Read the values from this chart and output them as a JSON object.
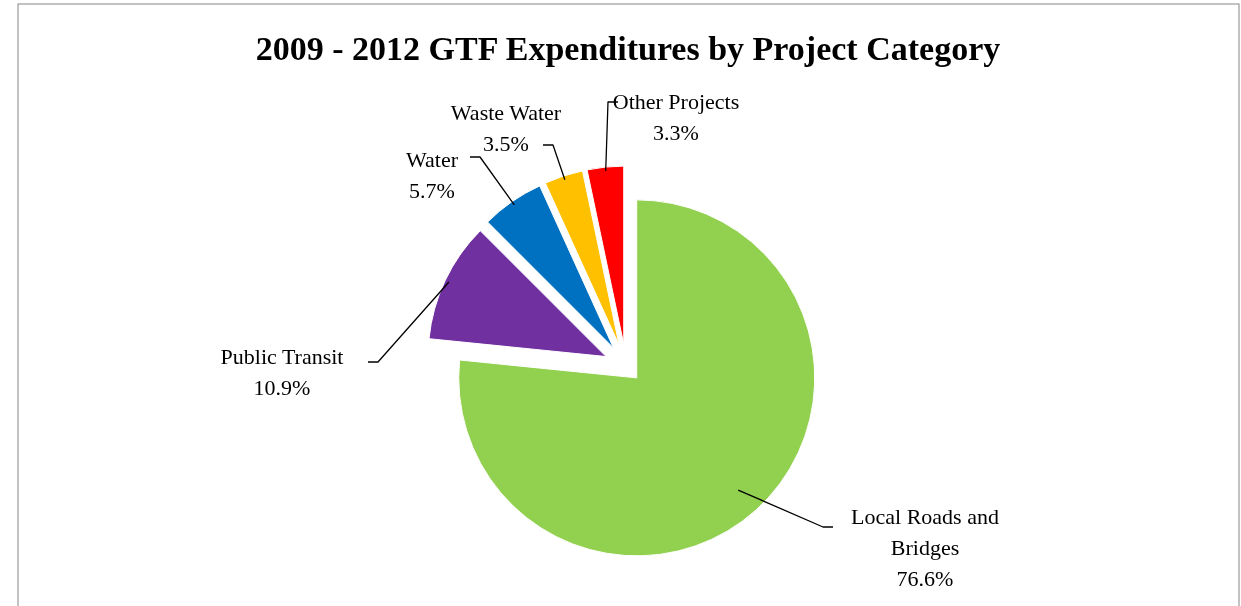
{
  "chart_data": {
    "type": "pie",
    "title": "2009 - 2012 GTF Expenditures by Project Category",
    "categories": [
      "Local Roads and Bridges",
      "Public Transit",
      "Water",
      "Waste Water",
      "Other Projects"
    ],
    "values": [
      76.6,
      10.9,
      5.7,
      3.5,
      3.3
    ],
    "value_labels": [
      "76.6%",
      "10.9%",
      "5.7%",
      "3.5%",
      "3.3%"
    ],
    "colors": [
      "#92d050",
      "#7030a0",
      "#0070c0",
      "#ffc000",
      "#ff0000"
    ]
  }
}
